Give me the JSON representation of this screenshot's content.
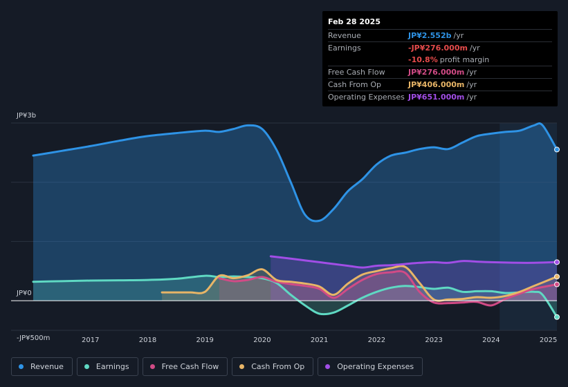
{
  "tooltip": {
    "date": "Feb 28 2025",
    "rows": [
      {
        "label": "Revenue",
        "value": "JP¥2.552b",
        "unit": "/yr",
        "color": "#2e93e6"
      },
      {
        "label": "Earnings",
        "value": "-JP¥276.000m",
        "unit": "/yr",
        "color": "#e64b4b"
      },
      {
        "label": "",
        "value": "-10.8%",
        "unit": "profit margin",
        "color": "#e64b4b"
      },
      {
        "label": "Free Cash Flow",
        "value": "JP¥276.000m",
        "unit": "/yr",
        "color": "#d14b86"
      },
      {
        "label": "Cash From Op",
        "value": "JP¥406.000m",
        "unit": "/yr",
        "color": "#e8b567"
      },
      {
        "label": "Operating Expenses",
        "value": "JP¥651.000m",
        "unit": "/yr",
        "color": "#a14ee6"
      }
    ]
  },
  "legend": [
    {
      "label": "Revenue",
      "color": "#2e93e6"
    },
    {
      "label": "Earnings",
      "color": "#5fd9c3"
    },
    {
      "label": "Free Cash Flow",
      "color": "#d14b86"
    },
    {
      "label": "Cash From Op",
      "color": "#e8b567"
    },
    {
      "label": "Operating Expenses",
      "color": "#a14ee6"
    }
  ],
  "chart_data": {
    "type": "area",
    "title": "",
    "y_axis_labels": [
      "JP¥3b",
      "JP¥0",
      "-JP¥500m"
    ],
    "ylim": [
      -500,
      3000
    ],
    "units": "JP¥ millions",
    "xlim": [
      2016.0,
      2025.15
    ],
    "x_ticks": [
      "2017",
      "2018",
      "2019",
      "2020",
      "2021",
      "2022",
      "2023",
      "2024",
      "2025"
    ],
    "x_tick_values": [
      2017,
      2018,
      2019,
      2020,
      2021,
      2022,
      2023,
      2024,
      2025
    ],
    "forecast_start": 2024.15,
    "series": [
      {
        "name": "Revenue",
        "color": "#2e93e6",
        "x": [
          2016.0,
          2016.5,
          2017.0,
          2017.5,
          2018.0,
          2018.5,
          2019.0,
          2019.25,
          2019.5,
          2019.75,
          2020.0,
          2020.25,
          2020.5,
          2020.75,
          2021.0,
          2021.25,
          2021.5,
          2021.75,
          2022.0,
          2022.25,
          2022.5,
          2022.75,
          2023.0,
          2023.25,
          2023.5,
          2023.75,
          2024.0,
          2024.25,
          2024.5,
          2024.75,
          2024.9,
          2025.15
        ],
        "values": [
          2450,
          2530,
          2610,
          2700,
          2780,
          2830,
          2870,
          2850,
          2900,
          2960,
          2900,
          2550,
          2000,
          1450,
          1350,
          1550,
          1850,
          2050,
          2300,
          2450,
          2500,
          2560,
          2590,
          2560,
          2670,
          2780,
          2820,
          2850,
          2870,
          2960,
          2960,
          2552
        ]
      },
      {
        "name": "Earnings",
        "color": "#5fd9c3",
        "x": [
          2016.0,
          2016.5,
          2017.0,
          2017.5,
          2018.0,
          2018.5,
          2019.0,
          2019.25,
          2019.5,
          2019.75,
          2020.0,
          2020.25,
          2020.5,
          2020.75,
          2021.0,
          2021.25,
          2021.5,
          2021.75,
          2022.0,
          2022.25,
          2022.5,
          2022.75,
          2023.0,
          2023.25,
          2023.5,
          2023.75,
          2024.0,
          2024.25,
          2024.5,
          2024.75,
          2024.9,
          2025.15
        ],
        "values": [
          320,
          330,
          340,
          345,
          350,
          370,
          420,
          400,
          410,
          400,
          380,
          300,
          100,
          -80,
          -220,
          -200,
          -80,
          50,
          150,
          220,
          250,
          230,
          200,
          220,
          150,
          160,
          160,
          130,
          140,
          150,
          100,
          -276
        ]
      },
      {
        "name": "Free Cash Flow",
        "color": "#d14b86",
        "x": [
          2019.25,
          2019.5,
          2019.75,
          2020.0,
          2020.25,
          2020.5,
          2020.75,
          2021.0,
          2021.25,
          2021.5,
          2021.75,
          2022.0,
          2022.25,
          2022.5,
          2022.75,
          2023.0,
          2023.25,
          2023.5,
          2023.75,
          2024.0,
          2024.25,
          2024.5,
          2024.75,
          2025.15
        ],
        "values": [
          380,
          330,
          350,
          400,
          320,
          280,
          250,
          200,
          50,
          200,
          350,
          450,
          480,
          470,
          150,
          -30,
          -40,
          -30,
          -20,
          -80,
          30,
          120,
          200,
          276
        ]
      },
      {
        "name": "Cash From Op",
        "color": "#e8b567",
        "x": [
          2018.25,
          2018.5,
          2018.75,
          2019.0,
          2019.25,
          2019.5,
          2019.75,
          2020.0,
          2020.25,
          2020.5,
          2020.75,
          2021.0,
          2021.25,
          2021.5,
          2021.75,
          2022.0,
          2022.25,
          2022.5,
          2022.75,
          2023.0,
          2023.25,
          2023.5,
          2023.75,
          2024.0,
          2024.25,
          2024.5,
          2024.75,
          2025.15
        ],
        "values": [
          140,
          140,
          140,
          150,
          420,
          380,
          430,
          530,
          350,
          320,
          290,
          240,
          100,
          290,
          440,
          500,
          550,
          570,
          300,
          20,
          20,
          30,
          60,
          50,
          80,
          150,
          250,
          406
        ]
      },
      {
        "name": "Operating Expenses",
        "color": "#a14ee6",
        "x": [
          2020.15,
          2020.5,
          2020.75,
          2021.0,
          2021.25,
          2021.5,
          2021.75,
          2022.0,
          2022.25,
          2022.5,
          2022.75,
          2023.0,
          2023.25,
          2023.5,
          2023.75,
          2024.0,
          2024.25,
          2024.5,
          2024.75,
          2025.15
        ],
        "values": [
          750,
          710,
          680,
          650,
          620,
          590,
          560,
          590,
          600,
          620,
          640,
          650,
          640,
          670,
          660,
          650,
          645,
          640,
          640,
          651
        ]
      }
    ]
  }
}
